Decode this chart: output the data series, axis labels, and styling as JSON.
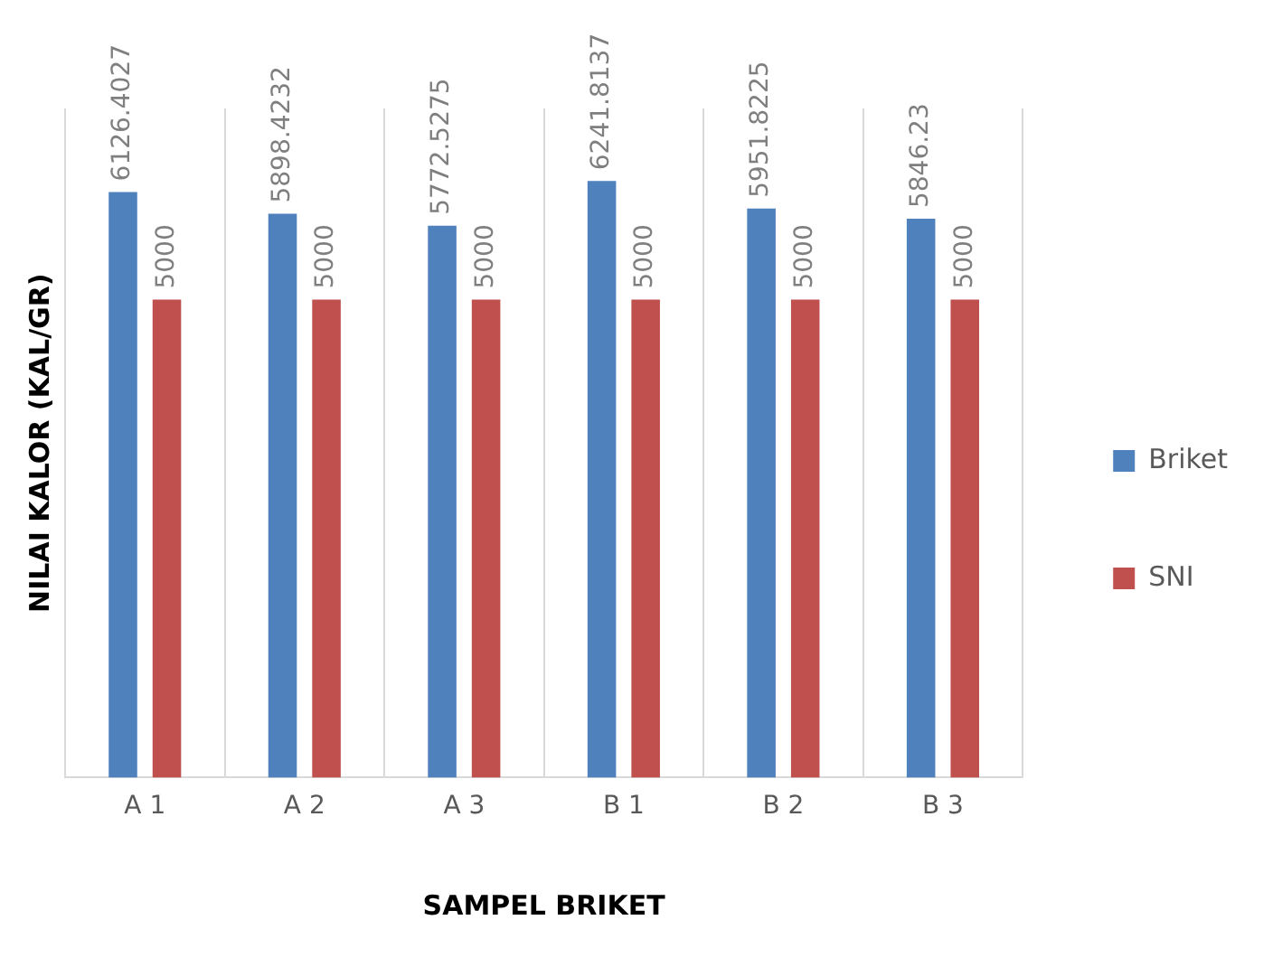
{
  "chart_data": {
    "type": "bar",
    "xlabel": "SAMPEL BRIKET",
    "ylabel": "NILAI KALOR (KAL/GR)",
    "categories": [
      "A 1",
      "A 2",
      "A 3",
      "B 1",
      "B 2",
      "B 3"
    ],
    "series": [
      {
        "name": "Briket",
        "color": "#4f81bd",
        "values": [
          6126.4027,
          5898.4232,
          5772.5275,
          6241.8137,
          5951.8225,
          5846.23
        ]
      },
      {
        "name": "SNI",
        "color": "#c0504d",
        "values": [
          5000,
          5000,
          5000,
          5000,
          5000,
          5000
        ]
      }
    ],
    "data_labels": true,
    "grid": "x",
    "legend": "right",
    "tick_labels": "x"
  }
}
